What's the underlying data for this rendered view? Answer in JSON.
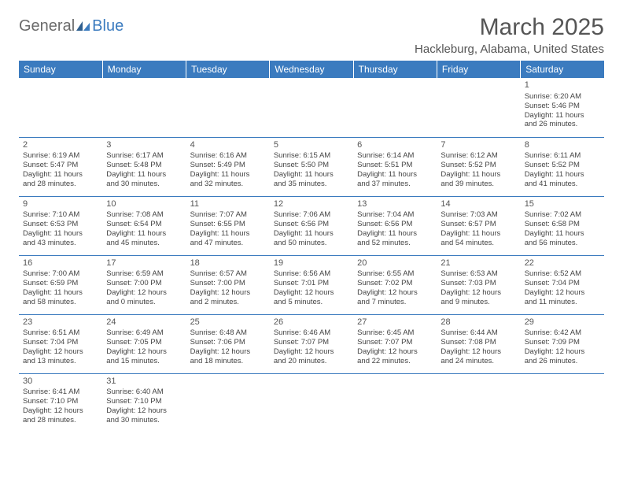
{
  "logo": {
    "part1": "General",
    "part2": "Blue"
  },
  "title": "March 2025",
  "location": "Hackleburg, Alabama, United States",
  "weekdays": [
    "Sunday",
    "Monday",
    "Tuesday",
    "Wednesday",
    "Thursday",
    "Friday",
    "Saturday"
  ],
  "colors": {
    "header_bg": "#3b7bbf",
    "header_text": "#ffffff",
    "border": "#3b7bbf",
    "body_text": "#444444",
    "title_text": "#555555"
  },
  "weeks": [
    [
      null,
      null,
      null,
      null,
      null,
      null,
      {
        "d": "1",
        "sr": "Sunrise: 6:20 AM",
        "ss": "Sunset: 5:46 PM",
        "dl1": "Daylight: 11 hours",
        "dl2": "and 26 minutes."
      }
    ],
    [
      {
        "d": "2",
        "sr": "Sunrise: 6:19 AM",
        "ss": "Sunset: 5:47 PM",
        "dl1": "Daylight: 11 hours",
        "dl2": "and 28 minutes."
      },
      {
        "d": "3",
        "sr": "Sunrise: 6:17 AM",
        "ss": "Sunset: 5:48 PM",
        "dl1": "Daylight: 11 hours",
        "dl2": "and 30 minutes."
      },
      {
        "d": "4",
        "sr": "Sunrise: 6:16 AM",
        "ss": "Sunset: 5:49 PM",
        "dl1": "Daylight: 11 hours",
        "dl2": "and 32 minutes."
      },
      {
        "d": "5",
        "sr": "Sunrise: 6:15 AM",
        "ss": "Sunset: 5:50 PM",
        "dl1": "Daylight: 11 hours",
        "dl2": "and 35 minutes."
      },
      {
        "d": "6",
        "sr": "Sunrise: 6:14 AM",
        "ss": "Sunset: 5:51 PM",
        "dl1": "Daylight: 11 hours",
        "dl2": "and 37 minutes."
      },
      {
        "d": "7",
        "sr": "Sunrise: 6:12 AM",
        "ss": "Sunset: 5:52 PM",
        "dl1": "Daylight: 11 hours",
        "dl2": "and 39 minutes."
      },
      {
        "d": "8",
        "sr": "Sunrise: 6:11 AM",
        "ss": "Sunset: 5:52 PM",
        "dl1": "Daylight: 11 hours",
        "dl2": "and 41 minutes."
      }
    ],
    [
      {
        "d": "9",
        "sr": "Sunrise: 7:10 AM",
        "ss": "Sunset: 6:53 PM",
        "dl1": "Daylight: 11 hours",
        "dl2": "and 43 minutes."
      },
      {
        "d": "10",
        "sr": "Sunrise: 7:08 AM",
        "ss": "Sunset: 6:54 PM",
        "dl1": "Daylight: 11 hours",
        "dl2": "and 45 minutes."
      },
      {
        "d": "11",
        "sr": "Sunrise: 7:07 AM",
        "ss": "Sunset: 6:55 PM",
        "dl1": "Daylight: 11 hours",
        "dl2": "and 47 minutes."
      },
      {
        "d": "12",
        "sr": "Sunrise: 7:06 AM",
        "ss": "Sunset: 6:56 PM",
        "dl1": "Daylight: 11 hours",
        "dl2": "and 50 minutes."
      },
      {
        "d": "13",
        "sr": "Sunrise: 7:04 AM",
        "ss": "Sunset: 6:56 PM",
        "dl1": "Daylight: 11 hours",
        "dl2": "and 52 minutes."
      },
      {
        "d": "14",
        "sr": "Sunrise: 7:03 AM",
        "ss": "Sunset: 6:57 PM",
        "dl1": "Daylight: 11 hours",
        "dl2": "and 54 minutes."
      },
      {
        "d": "15",
        "sr": "Sunrise: 7:02 AM",
        "ss": "Sunset: 6:58 PM",
        "dl1": "Daylight: 11 hours",
        "dl2": "and 56 minutes."
      }
    ],
    [
      {
        "d": "16",
        "sr": "Sunrise: 7:00 AM",
        "ss": "Sunset: 6:59 PM",
        "dl1": "Daylight: 11 hours",
        "dl2": "and 58 minutes."
      },
      {
        "d": "17",
        "sr": "Sunrise: 6:59 AM",
        "ss": "Sunset: 7:00 PM",
        "dl1": "Daylight: 12 hours",
        "dl2": "and 0 minutes."
      },
      {
        "d": "18",
        "sr": "Sunrise: 6:57 AM",
        "ss": "Sunset: 7:00 PM",
        "dl1": "Daylight: 12 hours",
        "dl2": "and 2 minutes."
      },
      {
        "d": "19",
        "sr": "Sunrise: 6:56 AM",
        "ss": "Sunset: 7:01 PM",
        "dl1": "Daylight: 12 hours",
        "dl2": "and 5 minutes."
      },
      {
        "d": "20",
        "sr": "Sunrise: 6:55 AM",
        "ss": "Sunset: 7:02 PM",
        "dl1": "Daylight: 12 hours",
        "dl2": "and 7 minutes."
      },
      {
        "d": "21",
        "sr": "Sunrise: 6:53 AM",
        "ss": "Sunset: 7:03 PM",
        "dl1": "Daylight: 12 hours",
        "dl2": "and 9 minutes."
      },
      {
        "d": "22",
        "sr": "Sunrise: 6:52 AM",
        "ss": "Sunset: 7:04 PM",
        "dl1": "Daylight: 12 hours",
        "dl2": "and 11 minutes."
      }
    ],
    [
      {
        "d": "23",
        "sr": "Sunrise: 6:51 AM",
        "ss": "Sunset: 7:04 PM",
        "dl1": "Daylight: 12 hours",
        "dl2": "and 13 minutes."
      },
      {
        "d": "24",
        "sr": "Sunrise: 6:49 AM",
        "ss": "Sunset: 7:05 PM",
        "dl1": "Daylight: 12 hours",
        "dl2": "and 15 minutes."
      },
      {
        "d": "25",
        "sr": "Sunrise: 6:48 AM",
        "ss": "Sunset: 7:06 PM",
        "dl1": "Daylight: 12 hours",
        "dl2": "and 18 minutes."
      },
      {
        "d": "26",
        "sr": "Sunrise: 6:46 AM",
        "ss": "Sunset: 7:07 PM",
        "dl1": "Daylight: 12 hours",
        "dl2": "and 20 minutes."
      },
      {
        "d": "27",
        "sr": "Sunrise: 6:45 AM",
        "ss": "Sunset: 7:07 PM",
        "dl1": "Daylight: 12 hours",
        "dl2": "and 22 minutes."
      },
      {
        "d": "28",
        "sr": "Sunrise: 6:44 AM",
        "ss": "Sunset: 7:08 PM",
        "dl1": "Daylight: 12 hours",
        "dl2": "and 24 minutes."
      },
      {
        "d": "29",
        "sr": "Sunrise: 6:42 AM",
        "ss": "Sunset: 7:09 PM",
        "dl1": "Daylight: 12 hours",
        "dl2": "and 26 minutes."
      }
    ],
    [
      {
        "d": "30",
        "sr": "Sunrise: 6:41 AM",
        "ss": "Sunset: 7:10 PM",
        "dl1": "Daylight: 12 hours",
        "dl2": "and 28 minutes."
      },
      {
        "d": "31",
        "sr": "Sunrise: 6:40 AM",
        "ss": "Sunset: 7:10 PM",
        "dl1": "Daylight: 12 hours",
        "dl2": "and 30 minutes."
      },
      null,
      null,
      null,
      null,
      null
    ]
  ]
}
